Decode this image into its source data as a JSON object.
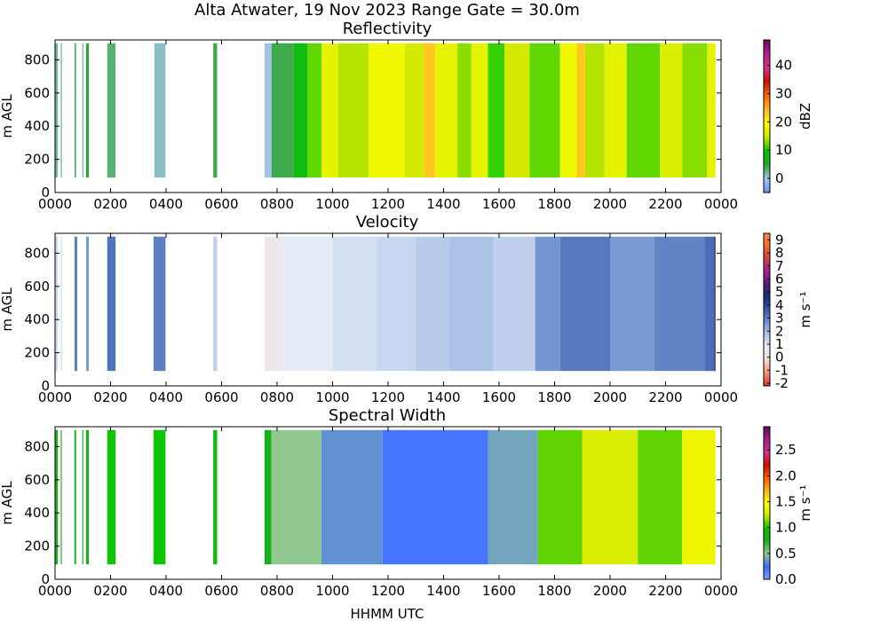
{
  "figure": {
    "suptitle": "Alta Atwater, 19 Nov 2023 Range Gate = 30.0m",
    "xlabel": "HHMM UTC"
  },
  "chart_data": [
    {
      "type": "heatmap",
      "title": "Reflectivity",
      "ylabel": "m AGL",
      "xlim": [
        0,
        24
      ],
      "ylim": [
        0,
        920
      ],
      "x_ticks": [
        "0000",
        "0200",
        "0400",
        "0600",
        "0800",
        "1000",
        "1200",
        "1400",
        "1600",
        "1800",
        "2000",
        "2200",
        "0000"
      ],
      "y_ticks": [
        0,
        200,
        400,
        600,
        800
      ],
      "data_y_range": [
        90,
        900
      ],
      "colorbar": {
        "label": "dBZ",
        "range": [
          -5,
          49
        ],
        "ticks": [
          "0",
          "10",
          "20",
          "30",
          "40"
        ],
        "tick_values": [
          0,
          10,
          20,
          30,
          40
        ],
        "colors": [
          "#6b8fff",
          "#a7c4ee",
          "#2aa52a",
          "#00c800",
          "#cfe800",
          "#ffff00",
          "#ffb02e",
          "#ff6600",
          "#cc1100",
          "#d4338c",
          "#b0208e",
          "#6a0a5a"
        ]
      },
      "data_segments": [
        {
          "start": 0.0,
          "end": 0.1,
          "v": 2
        },
        {
          "start": 0.2,
          "end": 0.25,
          "v": 1
        },
        {
          "start": 0.7,
          "end": 0.76,
          "v": 3
        },
        {
          "start": 0.98,
          "end": 1.02,
          "v": 2
        },
        {
          "start": 1.12,
          "end": 1.22,
          "v": 5
        },
        {
          "start": 1.88,
          "end": 2.18,
          "v": 3
        },
        {
          "start": 3.58,
          "end": 3.98,
          "v": 1
        },
        {
          "start": 5.7,
          "end": 5.84,
          "v": 4
        },
        {
          "start": 7.55,
          "end": 7.8,
          "v": 0
        },
        {
          "start": 7.8,
          "end": 8.6,
          "v": 4
        },
        {
          "start": 8.6,
          "end": 9.1,
          "v": 8
        },
        {
          "start": 9.1,
          "end": 9.6,
          "v": 12
        },
        {
          "start": 9.6,
          "end": 10.2,
          "v": 17
        },
        {
          "start": 10.2,
          "end": 11.3,
          "v": 14
        },
        {
          "start": 11.3,
          "end": 12.6,
          "v": 18
        },
        {
          "start": 12.6,
          "end": 13.3,
          "v": 15
        },
        {
          "start": 13.3,
          "end": 13.7,
          "v": 23
        },
        {
          "start": 13.7,
          "end": 14.5,
          "v": 17
        },
        {
          "start": 14.5,
          "end": 15.0,
          "v": 13
        },
        {
          "start": 15.0,
          "end": 15.6,
          "v": 17
        },
        {
          "start": 15.6,
          "end": 16.2,
          "v": 11
        },
        {
          "start": 16.2,
          "end": 17.1,
          "v": 15
        },
        {
          "start": 17.1,
          "end": 18.2,
          "v": 12
        },
        {
          "start": 18.2,
          "end": 18.8,
          "v": 18
        },
        {
          "start": 18.8,
          "end": 19.1,
          "v": 23
        },
        {
          "start": 19.1,
          "end": 19.8,
          "v": 14
        },
        {
          "start": 19.8,
          "end": 20.6,
          "v": 17
        },
        {
          "start": 20.6,
          "end": 21.8,
          "v": 12
        },
        {
          "start": 21.8,
          "end": 22.6,
          "v": 16
        },
        {
          "start": 22.6,
          "end": 23.5,
          "v": 13
        },
        {
          "start": 23.5,
          "end": 23.8,
          "v": 17
        }
      ]
    },
    {
      "type": "heatmap",
      "title": "Velocity",
      "ylabel": "m AGL",
      "xlim": [
        0,
        24
      ],
      "ylim": [
        0,
        920
      ],
      "x_ticks": [
        "0000",
        "0200",
        "0400",
        "0600",
        "0800",
        "1000",
        "1200",
        "1400",
        "1600",
        "1800",
        "2000",
        "2200",
        "0000"
      ],
      "y_ticks": [
        0,
        200,
        400,
        600,
        800
      ],
      "data_y_range": [
        90,
        900
      ],
      "colorbar": {
        "label": "m s⁻¹",
        "range": [
          -2.2,
          9.5
        ],
        "ticks": [
          "-2",
          "-1",
          "0",
          "1",
          "2",
          "3",
          "4",
          "5",
          "6",
          "7",
          "8",
          "9"
        ],
        "tick_values": [
          -2,
          -1,
          0,
          1,
          2,
          3,
          4,
          5,
          6,
          7,
          8,
          9
        ],
        "colors": [
          "#d93a1f",
          "#f0907a",
          "#f7d8d0",
          "#e8eef8",
          "#b3c6e8",
          "#6f91d0",
          "#3559a8",
          "#1c2f6e",
          "#5a1e6e",
          "#a0238e",
          "#d04040",
          "#f06a2a",
          "#ff8c40"
        ]
      },
      "data_segments": [
        {
          "start": 0.0,
          "end": 0.1,
          "v": 1.2
        },
        {
          "start": 0.2,
          "end": 0.25,
          "v": 1.0
        },
        {
          "start": 0.7,
          "end": 0.8,
          "v": 3.0
        },
        {
          "start": 1.12,
          "end": 1.22,
          "v": 2.5
        },
        {
          "start": 1.88,
          "end": 2.18,
          "v": 3.2
        },
        {
          "start": 3.55,
          "end": 3.98,
          "v": 3.0
        },
        {
          "start": 5.7,
          "end": 5.84,
          "v": 1.5
        },
        {
          "start": 7.55,
          "end": 8.2,
          "v": 0.4
        },
        {
          "start": 8.2,
          "end": 10.0,
          "v": 0.8
        },
        {
          "start": 10.0,
          "end": 11.6,
          "v": 1.1
        },
        {
          "start": 11.6,
          "end": 13.0,
          "v": 1.3
        },
        {
          "start": 13.0,
          "end": 14.2,
          "v": 1.6
        },
        {
          "start": 14.2,
          "end": 15.8,
          "v": 1.8
        },
        {
          "start": 15.8,
          "end": 17.3,
          "v": 1.5
        },
        {
          "start": 17.3,
          "end": 18.2,
          "v": 2.6
        },
        {
          "start": 18.2,
          "end": 20.0,
          "v": 3.1
        },
        {
          "start": 20.0,
          "end": 21.6,
          "v": 2.5
        },
        {
          "start": 21.6,
          "end": 23.4,
          "v": 2.9
        },
        {
          "start": 23.4,
          "end": 23.75,
          "v": 3.3
        },
        {
          "start": 23.75,
          "end": 23.8,
          "v": 5.0
        }
      ]
    },
    {
      "type": "heatmap",
      "title": "Spectral Width",
      "ylabel": "m AGL",
      "xlim": [
        0,
        24
      ],
      "ylim": [
        0,
        920
      ],
      "x_ticks": [
        "0000",
        "0200",
        "0400",
        "0600",
        "0800",
        "1000",
        "1200",
        "1400",
        "1600",
        "1800",
        "2000",
        "2200",
        "0000"
      ],
      "y_ticks": [
        0,
        200,
        400,
        600,
        800
      ],
      "data_y_range": [
        90,
        900
      ],
      "colorbar": {
        "label": "m s⁻¹",
        "range": [
          0,
          2.95
        ],
        "ticks": [
          "0.0",
          "0.5",
          "1.0",
          "1.5",
          "2.0",
          "2.5"
        ],
        "tick_values": [
          0.0,
          0.5,
          1.0,
          1.5,
          2.0,
          2.5
        ],
        "colors": [
          "#7aa0ff",
          "#3a6bff",
          "#95c994",
          "#22aa22",
          "#00c400",
          "#c8e600",
          "#ffff00",
          "#ffb020",
          "#ff5a00",
          "#cc1100",
          "#d4338c",
          "#a01d8a",
          "#5e0a56"
        ]
      },
      "data_segments": [
        {
          "start": 0.0,
          "end": 0.1,
          "v": 0.8
        },
        {
          "start": 0.2,
          "end": 0.25,
          "v": 0.6
        },
        {
          "start": 0.7,
          "end": 0.76,
          "v": 0.9
        },
        {
          "start": 0.98,
          "end": 1.02,
          "v": 0.7
        },
        {
          "start": 1.12,
          "end": 1.22,
          "v": 0.8
        },
        {
          "start": 1.88,
          "end": 2.18,
          "v": 1.0
        },
        {
          "start": 3.55,
          "end": 3.98,
          "v": 1.0
        },
        {
          "start": 5.7,
          "end": 5.84,
          "v": 0.9
        },
        {
          "start": 7.55,
          "end": 7.8,
          "v": 0.8
        },
        {
          "start": 7.8,
          "end": 9.6,
          "v": 0.5
        },
        {
          "start": 9.6,
          "end": 11.8,
          "v": 0.35
        },
        {
          "start": 11.8,
          "end": 15.6,
          "v": 0.2
        },
        {
          "start": 15.6,
          "end": 17.4,
          "v": 0.4
        },
        {
          "start": 17.4,
          "end": 19.0,
          "v": 1.1
        },
        {
          "start": 19.0,
          "end": 21.0,
          "v": 1.3
        },
        {
          "start": 21.0,
          "end": 22.6,
          "v": 1.1
        },
        {
          "start": 22.6,
          "end": 23.8,
          "v": 1.4
        }
      ]
    }
  ]
}
